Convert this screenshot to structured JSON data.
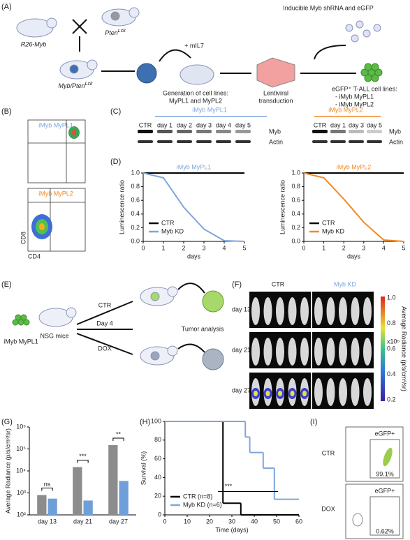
{
  "panels": {
    "a": {
      "label": "(A)",
      "mouse1": "R26-Myb",
      "mouse2": "Pten",
      "mouse2_sup": "Lck",
      "mouse3": "Myb/Pten",
      "mouse3_sup": "Lck",
      "cytokine": "+ mIL7",
      "vector": "Inducible Myb shRNA and eGFP",
      "step1": [
        "Generation of cell lines:",
        "MyPL1 and MyPL2"
      ],
      "step2": [
        "Lentiviral",
        "transduction"
      ],
      "result": [
        "eGFP⁺ T-ALL cell lines:",
        "- iMyb MyPL1",
        "- iMyb MyPL2"
      ]
    },
    "b": {
      "label": "(B)",
      "top": "iMyb MyPL1",
      "bottom": "iMyb MyPL2",
      "ylabel": "CD8",
      "xlabel": "CD4"
    },
    "c": {
      "label": "(C)",
      "left": {
        "title": "iMyb MyPL1",
        "lanes": [
          "CTR",
          "day 1",
          "day 2",
          "day 3",
          "day 4",
          "day 5"
        ]
      },
      "right": {
        "title": "iMyb MyPL2",
        "lanes": [
          "CTR",
          "day 1",
          "day 3",
          "day 5"
        ]
      },
      "bands": [
        "Myb",
        "Actin"
      ]
    },
    "d": {
      "label": "(D)"
    },
    "e": {
      "label": "(E)",
      "cells": "iMyb MyPL1",
      "mice": "NSG mice",
      "ctr": "CTR",
      "day": "Day 4",
      "dox": "DOX",
      "analysis": "Tumor analysis"
    },
    "f": {
      "label": "(F)",
      "ctr": "CTR",
      "kd": "Myb KD",
      "rows": [
        "day 13",
        "day 21",
        "day 27"
      ],
      "scale": [
        "1.0",
        "0.8",
        "0.6",
        "0.4",
        "0.2"
      ],
      "scale_unit": "x10⁶",
      "scale_title": "Average Radiance (p/s/cm²/sr)"
    },
    "g": {
      "label": "(G)"
    },
    "h": {
      "label": "(H)"
    },
    "i": {
      "label": "(I)",
      "rows": [
        "CTR",
        "DOX"
      ],
      "gate": "eGFP+",
      "percent": [
        "99.1%",
        "0.62%"
      ]
    }
  },
  "chart_data": [
    {
      "type": "line",
      "title": "iMyb MyPL1",
      "title_color": "#7ea6db",
      "xlabel": "days",
      "ylabel": "Luminescence ratio",
      "x": [
        0,
        1,
        2,
        3,
        4,
        5
      ],
      "series": [
        {
          "name": "CTR",
          "color": "#000000",
          "values": [
            1,
            1,
            1,
            1,
            1,
            1
          ]
        },
        {
          "name": "Myb KD",
          "color": "#7ea6db",
          "values": [
            1,
            0.93,
            0.5,
            0.18,
            0.01,
            0
          ]
        }
      ],
      "xlim": [
        0,
        5
      ],
      "xticks": [
        0,
        1,
        2,
        3,
        4,
        5
      ],
      "ylim": [
        0,
        1
      ],
      "yticks": [
        {
          "value": 0,
          "label": "0.0"
        },
        0.2,
        0.4,
        0.6,
        0.8,
        {
          "value": 1,
          "label": "1.0"
        }
      ],
      "legend": "lower left"
    },
    {
      "type": "line",
      "title": "iMyb MyPL2",
      "title_color": "#f08a24",
      "xlabel": "days",
      "ylabel": "Luminescence ratio",
      "x": [
        0,
        1,
        2,
        3,
        4,
        5
      ],
      "series": [
        {
          "name": "CTR",
          "color": "#000000",
          "values": [
            1,
            1,
            1,
            1,
            1,
            1
          ]
        },
        {
          "name": "Myb KD",
          "color": "#f08a24",
          "values": [
            1,
            0.93,
            0.62,
            0.28,
            0.02,
            0
          ]
        }
      ],
      "xlim": [
        0,
        5
      ],
      "xticks": [
        0,
        1,
        2,
        3,
        4,
        5
      ],
      "ylim": [
        0,
        1
      ],
      "yticks": [
        {
          "value": 0,
          "label": "0.0"
        },
        0.2,
        0.4,
        0.6,
        0.8,
        {
          "value": 1,
          "label": "1.0"
        }
      ],
      "legend": "lower left"
    },
    {
      "type": "bar",
      "ylabel": "Average Radiance (p/s/cm²/sr)",
      "log": true,
      "categories": [
        "day 13",
        "day 21",
        "day 27"
      ],
      "series": [
        {
          "color": "#8c8c8c",
          "values": [
            800,
            15000,
            150000
          ]
        },
        {
          "color": "#6f9fd8",
          "values": [
            550,
            450,
            3500
          ]
        }
      ],
      "ylim": [
        100,
        1000000
      ],
      "yticks": [
        {
          "value": 100,
          "label": "10²"
        },
        {
          "value": 1000,
          "label": "10³"
        },
        {
          "value": 10000,
          "label": "10⁴"
        },
        {
          "value": 100000,
          "label": "10⁵"
        },
        {
          "value": 1000000,
          "label": "10⁶"
        }
      ],
      "annotations": [
        "ns",
        "***",
        "**"
      ]
    },
    {
      "type": "line",
      "step": true,
      "xlabel": "Time (days)",
      "ylabel": "Survival (%)",
      "series": [
        {
          "name": "CTR (n=8)",
          "color": "#000000",
          "x": [
            0,
            26,
            34
          ],
          "values": [
            100,
            12.5,
            0
          ]
        },
        {
          "name": "Myb KD (n=6)",
          "color": "#7ea6db",
          "x": [
            0,
            36,
            38,
            44,
            49
          ],
          "values": [
            100,
            83.3,
            66.7,
            50,
            16.7
          ]
        }
      ],
      "xlim": [
        0,
        60
      ],
      "xticks": [
        0,
        10,
        20,
        30,
        40,
        50,
        60
      ],
      "ylim": [
        0,
        100
      ],
      "yticks": [
        0,
        20,
        40,
        60,
        80,
        100
      ],
      "legend": "lower left",
      "annotation": "***"
    }
  ]
}
